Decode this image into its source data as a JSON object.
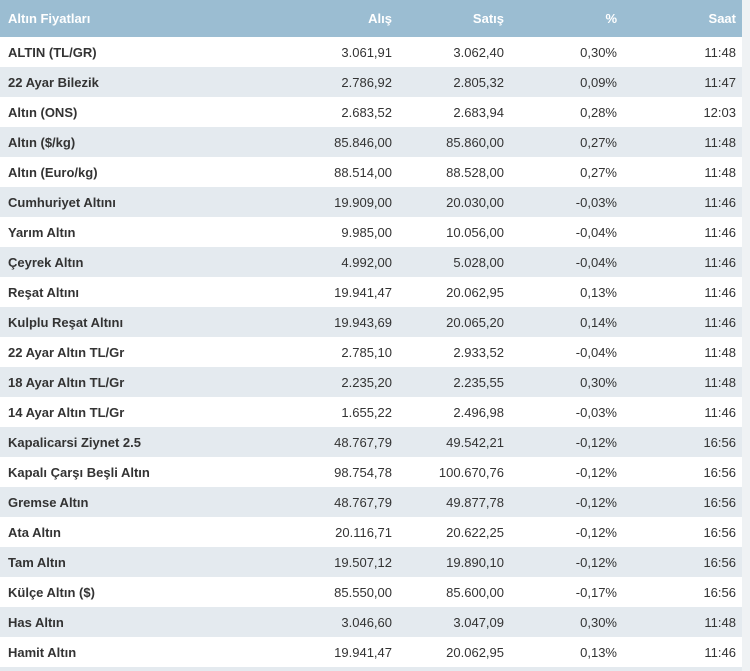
{
  "chart_data": {
    "type": "table",
    "title": "Altın Fiyatları",
    "columns": [
      "Altın Fiyatları",
      "Alış",
      "Satış",
      "%",
      "Saat"
    ],
    "rows": [
      [
        "ALTIN (TL/GR)",
        "3.061,91",
        "3.062,40",
        "0,30%",
        "11:48"
      ],
      [
        "22 Ayar Bilezik",
        "2.786,92",
        "2.805,32",
        "0,09%",
        "11:47"
      ],
      [
        "Altın (ONS)",
        "2.683,52",
        "2.683,94",
        "0,28%",
        "12:03"
      ],
      [
        "Altın ($/kg)",
        "85.846,00",
        "85.860,00",
        "0,27%",
        "11:48"
      ],
      [
        "Altın (Euro/kg)",
        "88.514,00",
        "88.528,00",
        "0,27%",
        "11:48"
      ],
      [
        "Cumhuriyet Altını",
        "19.909,00",
        "20.030,00",
        "-0,03%",
        "11:46"
      ],
      [
        "Yarım Altın",
        "9.985,00",
        "10.056,00",
        "-0,04%",
        "11:46"
      ],
      [
        "Çeyrek Altın",
        "4.992,00",
        "5.028,00",
        "-0,04%",
        "11:46"
      ],
      [
        "Reşat Altını",
        "19.941,47",
        "20.062,95",
        "0,13%",
        "11:46"
      ],
      [
        "Kulplu Reşat Altını",
        "19.943,69",
        "20.065,20",
        "0,14%",
        "11:46"
      ],
      [
        "22 Ayar Altın TL/Gr",
        "2.785,10",
        "2.933,52",
        "-0,04%",
        "11:48"
      ],
      [
        "18 Ayar Altın TL/Gr",
        "2.235,20",
        "2.235,55",
        "0,30%",
        "11:48"
      ],
      [
        "14 Ayar Altın TL/Gr",
        "1.655,22",
        "2.496,98",
        "-0,03%",
        "11:46"
      ],
      [
        "Kapalicarsi Ziynet 2.5",
        "48.767,79",
        "49.542,21",
        "-0,12%",
        "16:56"
      ],
      [
        "Kapalı Çarşı Beşli Altın",
        "98.754,78",
        "100.670,76",
        "-0,12%",
        "16:56"
      ],
      [
        "Gremse Altın",
        "48.767,79",
        "49.877,78",
        "-0,12%",
        "16:56"
      ],
      [
        "Ata Altın",
        "20.116,71",
        "20.622,25",
        "-0,12%",
        "16:56"
      ],
      [
        "Tam Altın",
        "19.507,12",
        "19.890,10",
        "-0,12%",
        "16:56"
      ],
      [
        "Külçe Altın ($)",
        "85.550,00",
        "85.600,00",
        "-0,17%",
        "16:56"
      ],
      [
        "Has Altın",
        "3.046,60",
        "3.047,09",
        "0,30%",
        "11:48"
      ],
      [
        "Hamit Altın",
        "19.941,47",
        "20.062,95",
        "0,13%",
        "11:46"
      ]
    ]
  },
  "colors": {
    "header_bg": "#9bbdd2",
    "header_text": "#ffffff",
    "row_bg": "#ffffff",
    "row_alt_bg": "#e4eaef",
    "text": "#333333",
    "page_bg": "#eff2f4"
  }
}
